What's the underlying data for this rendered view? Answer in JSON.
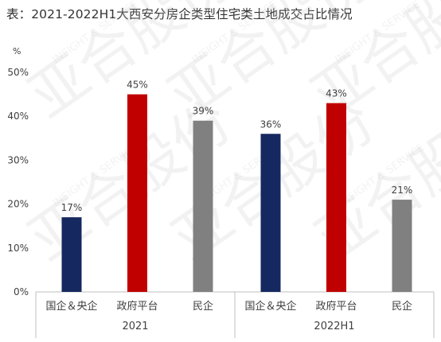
{
  "title": "表：2021-2022H1大西安分房企类型住宅类土地成交占比情况",
  "watermark": {
    "text": "亚合股份",
    "subtext": "INSIGHT & SERVICE"
  },
  "chart_data": {
    "type": "bar",
    "title": "表：2021-2022H1大西安分房企类型住宅类土地成交占比情况",
    "ylabel": "%",
    "xlabel": "",
    "ylim": [
      0,
      50
    ],
    "yticks": [
      0,
      10,
      20,
      30,
      40,
      50
    ],
    "ytick_labels": [
      "0%",
      "10%",
      "20%",
      "30%",
      "40%",
      "50%"
    ],
    "grid": false,
    "legend": "none",
    "groups": [
      {
        "name": "2021",
        "categories": [
          "国企＆央企",
          "政府平台",
          "民企"
        ],
        "values": [
          17,
          45,
          39
        ],
        "labels": [
          "17%",
          "45%",
          "39%"
        ]
      },
      {
        "name": "2022H1",
        "categories": [
          "国企＆央企",
          "政府平台",
          "民企"
        ],
        "values": [
          36,
          43,
          21
        ],
        "labels": [
          "36%",
          "43%",
          "21%"
        ]
      }
    ],
    "colors": {
      "国企＆央企": "#15285f",
      "政府平台": "#c00000",
      "民企": "#808080",
      "axis": "#bfbfbf",
      "text": "#404040"
    }
  }
}
